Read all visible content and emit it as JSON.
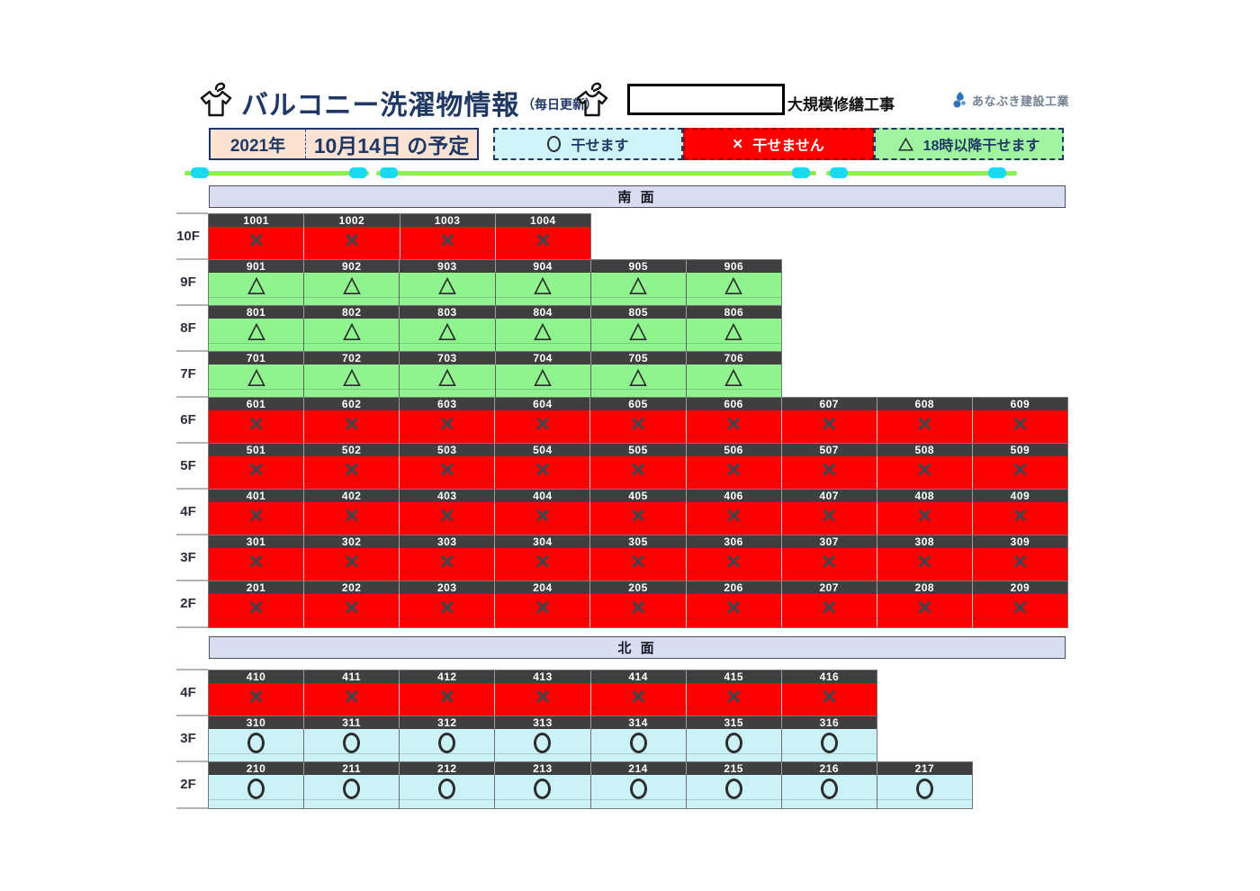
{
  "header": {
    "title": "バルコニー洗濯物情報",
    "subtitle": "（毎日更新）",
    "project_label": "大規模修繕工事",
    "company_name": "あなぶき建設工業"
  },
  "schedule": {
    "year": "2021年",
    "date_label": "10月14日 の予定"
  },
  "legend": {
    "items": [
      {
        "symbol": "circle",
        "label": "干せます",
        "bg": "#cdf4f7"
      },
      {
        "symbol": "cross",
        "label": "干せません",
        "bg": "#fe0000"
      },
      {
        "symbol": "triangle",
        "label": "18時以降干せます",
        "bg": "#a0f3a0"
      }
    ]
  },
  "symbols": {
    "cross_glyph": "×"
  },
  "colors": {
    "status_x_bg": "#fe0000",
    "status_triangle_bg": "#8ff38f",
    "status_circle_bg": "#cbf3f7",
    "navy": "#1f3864",
    "room_header_bg": "#3f3f3f",
    "section_header_bg": "#d9ddf1",
    "date_box_bg": "#fbe2d3",
    "clothesline_green": "#8df052",
    "clothespin_cyan": "#1cd9f2"
  },
  "sections": [
    {
      "name": "南 面",
      "floors": [
        {
          "label": "10F",
          "status": "x",
          "rooms": [
            "1001",
            "1002",
            "1003",
            "1004"
          ]
        },
        {
          "label": "9F",
          "status": "triangle",
          "rooms": [
            "901",
            "902",
            "903",
            "904",
            "905",
            "906"
          ]
        },
        {
          "label": "8F",
          "status": "triangle",
          "rooms": [
            "801",
            "802",
            "803",
            "804",
            "805",
            "806"
          ]
        },
        {
          "label": "7F",
          "status": "triangle",
          "rooms": [
            "701",
            "702",
            "703",
            "704",
            "705",
            "706"
          ]
        },
        {
          "label": "6F",
          "status": "x",
          "rooms": [
            "601",
            "602",
            "603",
            "604",
            "605",
            "606",
            "607",
            "608",
            "609"
          ]
        },
        {
          "label": "5F",
          "status": "x",
          "rooms": [
            "501",
            "502",
            "503",
            "504",
            "505",
            "506",
            "507",
            "508",
            "509"
          ]
        },
        {
          "label": "4F",
          "status": "x",
          "rooms": [
            "401",
            "402",
            "403",
            "404",
            "405",
            "406",
            "407",
            "408",
            "409"
          ]
        },
        {
          "label": "3F",
          "status": "x",
          "rooms": [
            "301",
            "302",
            "303",
            "304",
            "305",
            "306",
            "307",
            "308",
            "309"
          ]
        },
        {
          "label": "2F",
          "status": "x",
          "rooms": [
            "201",
            "202",
            "203",
            "204",
            "205",
            "206",
            "207",
            "208",
            "209"
          ]
        }
      ]
    },
    {
      "name": "北 面",
      "floors": [
        {
          "label": "4F",
          "status": "x",
          "rooms": [
            "410",
            "411",
            "412",
            "413",
            "414",
            "415",
            "416"
          ]
        },
        {
          "label": "3F",
          "status": "circle",
          "rooms": [
            "310",
            "311",
            "312",
            "313",
            "314",
            "315",
            "316"
          ]
        },
        {
          "label": "2F",
          "status": "circle",
          "rooms": [
            "210",
            "211",
            "212",
            "213",
            "214",
            "215",
            "216",
            "217"
          ]
        }
      ]
    }
  ]
}
